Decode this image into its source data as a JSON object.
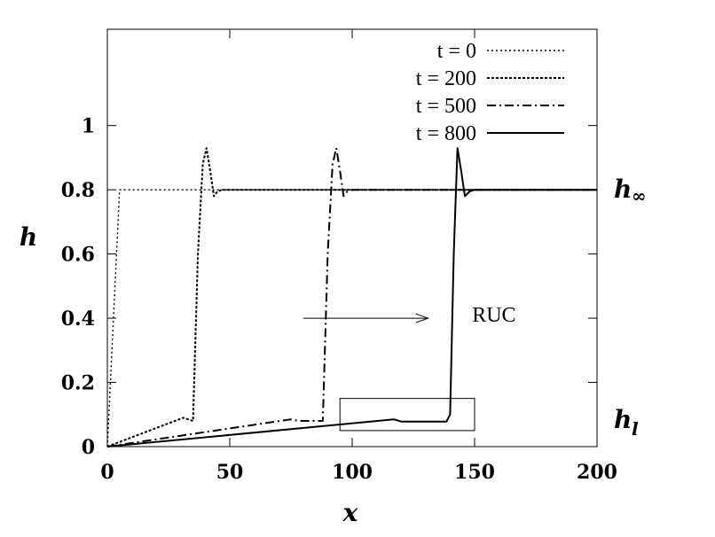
{
  "chart_data": {
    "type": "line",
    "xlabel": "x",
    "ylabel": "h",
    "xlim": [
      0,
      200
    ],
    "ylim": [
      0,
      1.3
    ],
    "xticks": [
      0,
      50,
      100,
      150,
      200
    ],
    "xtick_labels": [
      "0",
      "50",
      "100",
      "150",
      "200"
    ],
    "yticks": [
      0,
      0.2,
      0.4,
      0.6,
      0.8,
      1
    ],
    "ytick_labels": [
      "0",
      "0.2",
      "0.4",
      "0.6",
      "0.8",
      "1"
    ],
    "grid": false,
    "legend_position": "top-right",
    "series": [
      {
        "name": "t = 0",
        "style": "dotted",
        "x": [
          0,
          5,
          200
        ],
        "y": [
          0,
          0.8,
          0.8
        ]
      },
      {
        "name": "t = 200",
        "style": "dashed",
        "x": [
          0,
          31,
          35,
          37,
          39,
          40.5,
          42,
          43.5,
          45,
          47,
          50,
          200
        ],
        "y": [
          0,
          0.09,
          0.08,
          0.6,
          0.88,
          0.93,
          0.86,
          0.78,
          0.795,
          0.8,
          0.8,
          0.8
        ]
      },
      {
        "name": "t = 500",
        "style": "dashdot",
        "x": [
          0,
          75,
          78,
          88,
          90,
          92,
          93.5,
          95,
          96.5,
          98,
          100,
          200
        ],
        "y": [
          0,
          0.085,
          0.08,
          0.08,
          0.6,
          0.88,
          0.93,
          0.86,
          0.78,
          0.795,
          0.8,
          0.8
        ]
      },
      {
        "name": "t = 800",
        "style": "solid",
        "x": [
          0,
          117,
          120,
          138.5,
          140,
          141.5,
          143,
          144.5,
          146,
          148,
          150,
          200
        ],
        "y": [
          0,
          0.085,
          0.078,
          0.078,
          0.1,
          0.6,
          0.93,
          0.86,
          0.78,
          0.795,
          0.8,
          0.8
        ]
      }
    ],
    "annotations": {
      "arrow": {
        "from": [
          80,
          0.4
        ],
        "to": [
          131,
          0.4
        ]
      },
      "label": {
        "text": "RUC",
        "x": 145,
        "y": 0.5
      },
      "box": {
        "x0": 95,
        "x1": 150,
        "y0": 0.05,
        "y1": 0.15
      }
    },
    "side_labels": {
      "h_inf_main": "h",
      "h_inf_sub": "∞",
      "h_l_main": "h",
      "h_l_sub": "l"
    }
  }
}
